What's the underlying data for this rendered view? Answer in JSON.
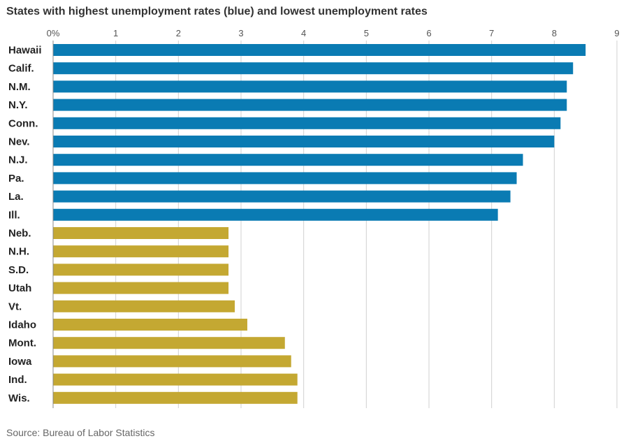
{
  "chart_data": {
    "type": "bar",
    "orientation": "horizontal",
    "title": "States with highest unemployment rates (blue) and lowest unemployment rates",
    "source": "Source: Bureau of Labor Statistics",
    "xlim": [
      0,
      9
    ],
    "x_ticks": [
      "0%",
      "1",
      "2",
      "3",
      "4",
      "5",
      "6",
      "7",
      "8",
      "9"
    ],
    "x_tick_values": [
      0,
      1,
      2,
      3,
      4,
      5,
      6,
      7,
      8,
      9
    ],
    "grid": true,
    "axis_position": "top",
    "categories": [
      "Hawaii",
      "Calif.",
      "N.M.",
      "N.Y.",
      "Conn.",
      "Nev.",
      "N.J.",
      "Pa.",
      "La.",
      "Ill.",
      "Neb.",
      "N.H.",
      "S.D.",
      "Utah",
      "Vt.",
      "Idaho",
      "Mont.",
      "Iowa",
      "Ind.",
      "Wis."
    ],
    "values": [
      8.5,
      8.3,
      8.2,
      8.2,
      8.1,
      8.0,
      7.5,
      7.4,
      7.3,
      7.1,
      2.8,
      2.8,
      2.8,
      2.8,
      2.9,
      3.1,
      3.7,
      3.8,
      3.9,
      3.9
    ],
    "groups": [
      "highest",
      "highest",
      "highest",
      "highest",
      "highest",
      "highest",
      "highest",
      "highest",
      "highest",
      "highest",
      "lowest",
      "lowest",
      "lowest",
      "lowest",
      "lowest",
      "lowest",
      "lowest",
      "lowest",
      "lowest",
      "lowest"
    ],
    "colors": {
      "highest": "#0a7bb3",
      "lowest": "#c4a832",
      "grid": "#d0d0d0",
      "axis": "#888888"
    }
  }
}
